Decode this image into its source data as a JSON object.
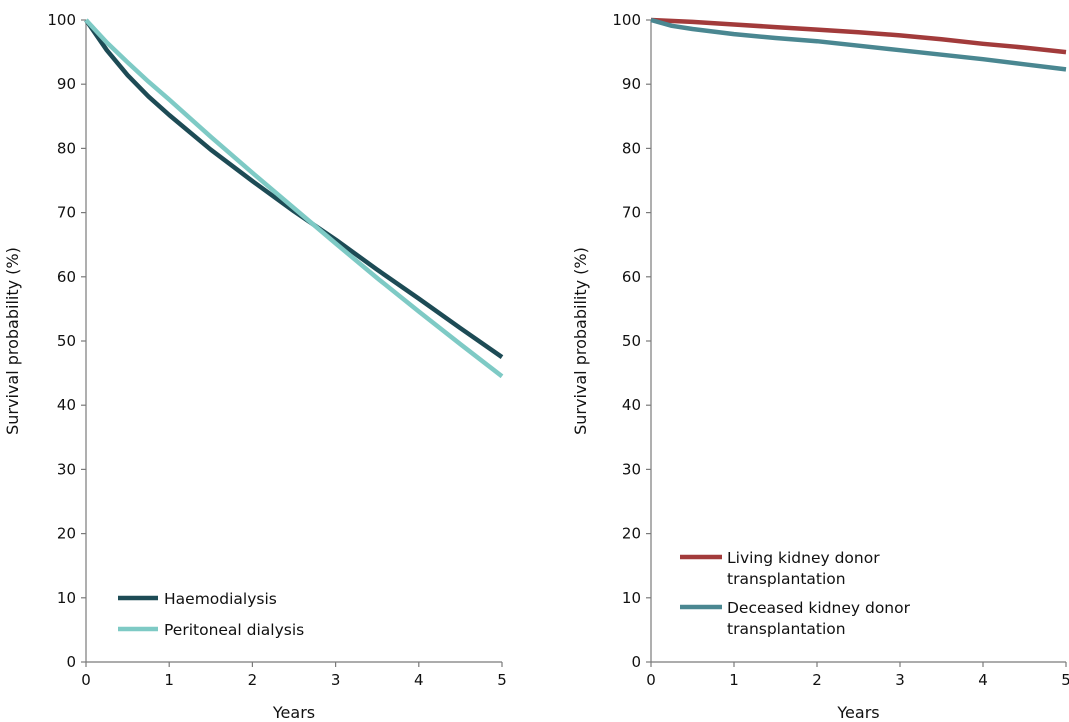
{
  "chart_data": [
    {
      "type": "line",
      "xlabel": "Years",
      "ylabel": "Survival probability (%)",
      "xlim": [
        0,
        5
      ],
      "ylim": [
        0,
        100
      ],
      "xticks": [
        "0",
        "1",
        "2",
        "3",
        "4",
        "5"
      ],
      "yticks": [
        "0",
        "10",
        "20",
        "30",
        "40",
        "50",
        "60",
        "70",
        "80",
        "90",
        "100"
      ],
      "grid": false,
      "legend_position": "bottom-left",
      "series": [
        {
          "name": "Haemodialysis",
          "color": "#1d4b55",
          "x": [
            0,
            0.25,
            0.5,
            0.75,
            1,
            1.5,
            2,
            2.5,
            3,
            3.5,
            4,
            4.5,
            5
          ],
          "values": [
            100,
            95.3,
            91.4,
            88.1,
            85.2,
            79.8,
            74.9,
            70.2,
            65.8,
            61.1,
            56.6,
            52.0,
            47.5
          ]
        },
        {
          "name": "Peritoneal dialysis",
          "color": "#7ecac5",
          "x": [
            0,
            0.25,
            0.5,
            0.75,
            1,
            1.5,
            2,
            2.5,
            3,
            3.5,
            4,
            4.5,
            5
          ],
          "values": [
            100,
            96.5,
            93.4,
            90.4,
            87.6,
            81.8,
            76.2,
            70.7,
            65.2,
            59.8,
            54.6,
            49.5,
            44.5
          ]
        }
      ]
    },
    {
      "type": "line",
      "xlabel": "Years",
      "ylabel": "Survival probability (%)",
      "xlim": [
        0,
        5
      ],
      "ylim": [
        0,
        100
      ],
      "xticks": [
        "0",
        "1",
        "2",
        "3",
        "4",
        "5"
      ],
      "yticks": [
        "0",
        "10",
        "20",
        "30",
        "40",
        "50",
        "60",
        "70",
        "80",
        "90",
        "100"
      ],
      "grid": false,
      "legend_position": "bottom-left",
      "series": [
        {
          "name": [
            "Living kidney donor",
            "transplantation"
          ],
          "color": "#a23b3b",
          "x": [
            0,
            0.5,
            1,
            1.5,
            2,
            2.5,
            3,
            3.5,
            4,
            4.5,
            5
          ],
          "values": [
            100,
            99.7,
            99.3,
            98.9,
            98.5,
            98.1,
            97.6,
            97.0,
            96.3,
            95.7,
            95.0
          ]
        },
        {
          "name": [
            "Deceased kidney donor",
            "transplantation"
          ],
          "color": "#4a8791",
          "x": [
            0,
            0.25,
            0.5,
            1,
            1.5,
            2,
            2.5,
            3,
            3.5,
            4,
            4.5,
            5
          ],
          "values": [
            100,
            99.1,
            98.6,
            97.8,
            97.2,
            96.7,
            96.0,
            95.3,
            94.6,
            93.9,
            93.1,
            92.3
          ]
        }
      ]
    }
  ]
}
